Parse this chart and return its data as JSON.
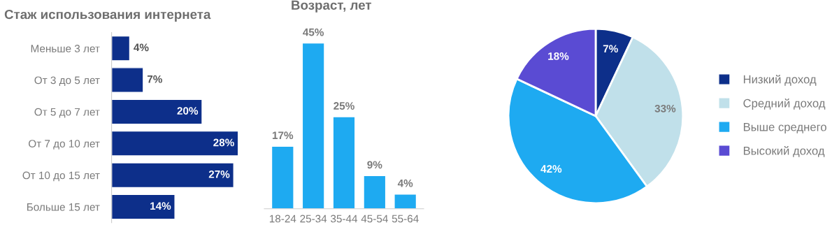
{
  "chart_data": [
    {
      "type": "bar",
      "orientation": "horizontal",
      "title": "Стаж использования интернета",
      "categories": [
        "Меньше 3 лет",
        "От 3 до 5 лет",
        "От 5 до 7 лет",
        "От 7 до 10 лет",
        "От 10 до 15 лет",
        "Больше 15 лет"
      ],
      "values": [
        4,
        7,
        20,
        28,
        27,
        14
      ],
      "color": "#0d2f8a",
      "value_labels": [
        "4%",
        "7%",
        "20%",
        "28%",
        "27%",
        "14%"
      ],
      "grid": false,
      "legend": false
    },
    {
      "type": "bar",
      "title": "Возраст, лет",
      "categories": [
        "18-24",
        "25-34",
        "35-44",
        "45-54",
        "55-64"
      ],
      "values": [
        17,
        45,
        25,
        9,
        4
      ],
      "color": "#1eaaf1",
      "value_labels": [
        "17%",
        "45%",
        "25%",
        "9%",
        "4%"
      ],
      "grid": false,
      "legend": false
    },
    {
      "type": "pie",
      "categories": [
        "Низкий доход",
        "Средний доход",
        "Выше среднего",
        "Высокий доход"
      ],
      "values": [
        7,
        33,
        42,
        18
      ],
      "colors": [
        "#0d2f8a",
        "#c0e0ea",
        "#1eaaf1",
        "#5a4bd3"
      ],
      "value_labels": [
        "7%",
        "33%",
        "42%",
        "18%"
      ],
      "legend": "right"
    }
  ]
}
